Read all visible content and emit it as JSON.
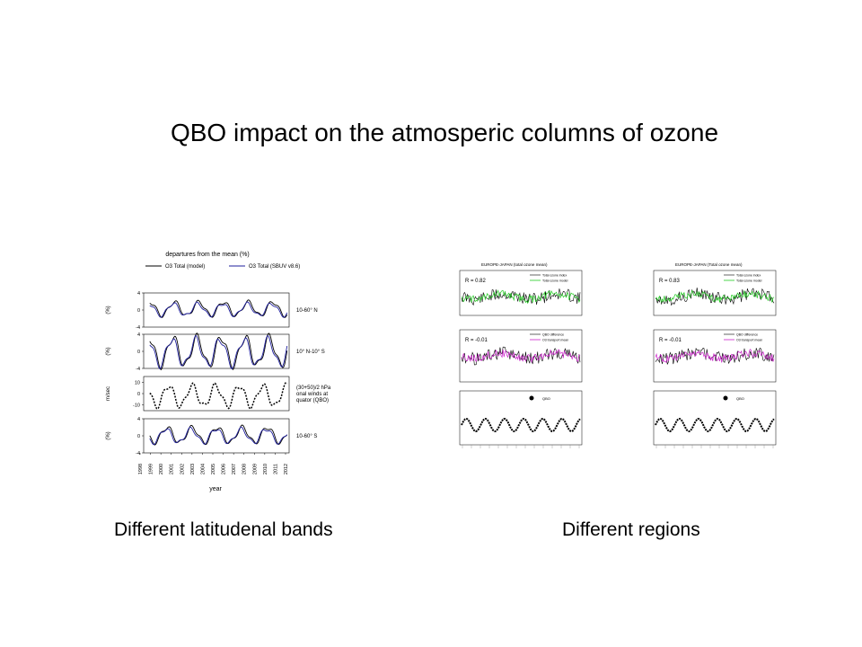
{
  "slide": {
    "title": "QBO impact on the atmosperic columns of ozone",
    "caption_left": "Different latitudenal bands",
    "caption_right": "Different regions"
  },
  "colors": {
    "model": "#000000",
    "sbuv": "#1f1f9e",
    "green": "#22cc22",
    "magenta": "#cc22cc"
  },
  "chart_data": [
    {
      "type": "line",
      "title": "departures from the mean (%)",
      "xlabel": "year",
      "x_ticks": [
        "1998",
        "1999",
        "2000",
        "2001",
        "2002",
        "2003",
        "2004",
        "2005",
        "2006",
        "2007",
        "2008",
        "2009",
        "2010",
        "2011",
        "2012"
      ],
      "legend": [
        "O3 Total (model)",
        "O3 Total (SBUV v8.6)"
      ],
      "legend_placement": "top",
      "panels": [
        {
          "label": "10-60° N",
          "ylabel": "(%)",
          "yticks": [
            "4",
            "0",
            "-4"
          ],
          "ylim": [
            -4,
            4
          ],
          "series": [
            {
              "name": "O3 Total (model)",
              "period": 2.4,
              "amplitude": 1.6,
              "offset": 0.3,
              "phase": 0.0
            },
            {
              "name": "O3 Total (SBUV v8.6)",
              "period": 2.4,
              "amplitude": 1.4,
              "offset": 0.1,
              "phase": 0.3
            }
          ]
        },
        {
          "label": "10° N-10° S",
          "ylabel": "(%)",
          "yticks": [
            "4",
            "0",
            "-4"
          ],
          "ylim": [
            -4,
            4
          ],
          "series": [
            {
              "name": "O3 Total (model)",
              "period": 2.35,
              "amplitude": 3.3,
              "offset": 0.0,
              "phase": 0.2
            },
            {
              "name": "O3 Total (SBUV v8.6)",
              "period": 2.35,
              "amplitude": 3.0,
              "offset": -0.2,
              "phase": 0.5
            }
          ]
        },
        {
          "label": "(30+50)/2 hPa zonal winds at equator (QBO)",
          "ylabel": "m/sec",
          "yticks": [
            "10",
            "0",
            "-10"
          ],
          "ylim": [
            -15,
            15
          ],
          "series": [
            {
              "name": "(30+50)/2 hPa",
              "period": 2.3,
              "amplitude": 9.0,
              "offset": -2.0,
              "phase": 1.2
            }
          ]
        },
        {
          "label": "10-60° S",
          "ylabel": "(%)",
          "yticks": [
            "4",
            "0",
            "-4"
          ],
          "ylim": [
            -4,
            4
          ],
          "series": [
            {
              "name": "O3 Total (model)",
              "period": 2.45,
              "amplitude": 1.8,
              "offset": 0.2,
              "phase": 2.0
            },
            {
              "name": "O3 Total (SBUV v8.6)",
              "period": 2.45,
              "amplitude": 1.6,
              "offset": 0.0,
              "phase": 2.3
            }
          ]
        }
      ]
    },
    {
      "type": "line",
      "title": "EUROPE-JAPAN (total ozone mean)",
      "r_values": [
        "R = 0.82",
        "R = -0.01"
      ],
      "legend_top": [
        "Total ozone index",
        "Total ozone model"
      ],
      "legend_mid": [
        "QBO difference",
        "O3 transport mean"
      ],
      "qbo_label": "QBO"
    },
    {
      "type": "line",
      "title": "EUROPE-JAPAN (Total ozone mean)",
      "r_values": [
        "R = 0.83",
        "R = -0.01"
      ],
      "legend_top": [
        "Total ozone index",
        "Total ozone model"
      ],
      "legend_mid": [
        "QBO difference",
        "O3 transport mean"
      ],
      "qbo_label": "QBO"
    }
  ]
}
